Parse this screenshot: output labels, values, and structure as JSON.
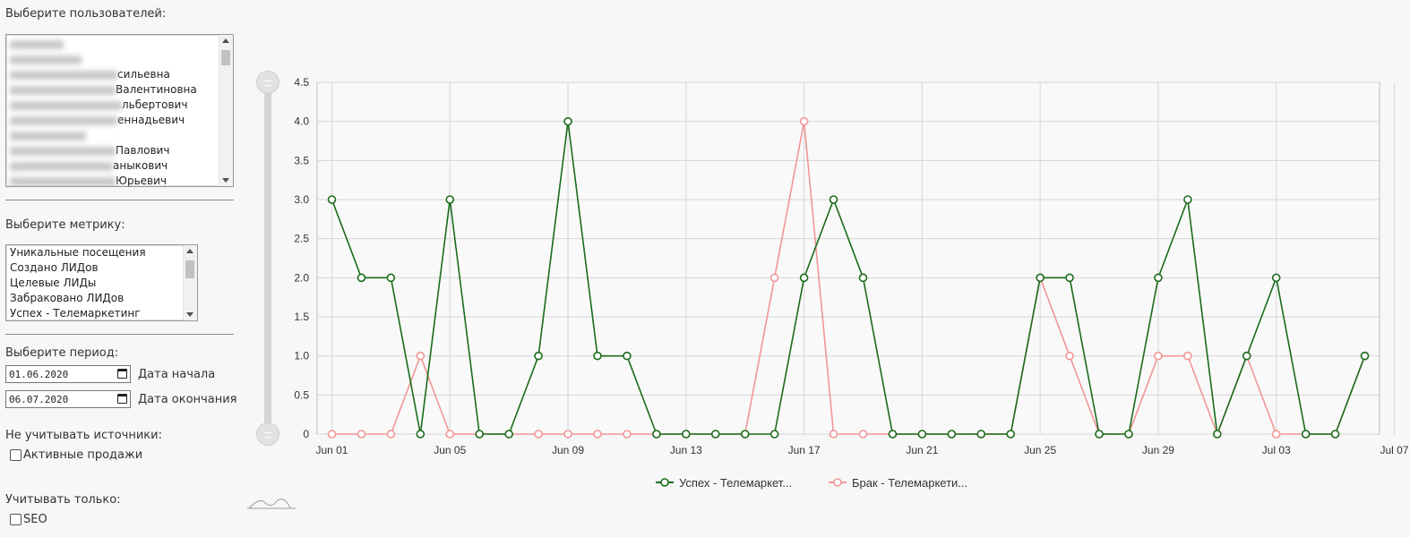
{
  "sidebar": {
    "users_label": "Выберите пользователей:",
    "users": [
      {
        "hidden_width": 60,
        "suffix": ""
      },
      {
        "hidden_width": 80,
        "suffix": ""
      },
      {
        "hidden_width": 120,
        "suffix": "сильевна"
      },
      {
        "hidden_width": 118,
        "suffix": "Валентиновна"
      },
      {
        "hidden_width": 125,
        "suffix": "льбертович"
      },
      {
        "hidden_width": 120,
        "suffix": "еннадьевич"
      },
      {
        "hidden_width": 85,
        "suffix": ""
      },
      {
        "hidden_width": 118,
        "suffix": "Павлович"
      },
      {
        "hidden_width": 115,
        "suffix": "аныкович"
      },
      {
        "hidden_width": 118,
        "suffix": "Юрьевич"
      }
    ],
    "metric_label": "Выберите метрику:",
    "metrics": [
      "Уникальные посещения",
      "Создано ЛИДов",
      "Целевые ЛИДы",
      "Забраковано ЛИДов",
      "Успех - Телемаркетинг"
    ],
    "period_label": "Выберите период:",
    "start_date": "01.06.2020",
    "start_caption": "Дата начала",
    "end_date": "06.07.2020",
    "end_caption": "Дата окончания",
    "exclude_label": "Не учитывать источники:",
    "exclude_option": "Активные продажи",
    "only_label": "Учитывать только:",
    "only_option": "SEO"
  },
  "chart_data": {
    "type": "line",
    "x_start": "2020-06-01",
    "x_end": "2020-07-07",
    "x": [
      "Jun 01",
      "Jun 02",
      "Jun 03",
      "Jun 04",
      "Jun 05",
      "Jun 06",
      "Jun 07",
      "Jun 08",
      "Jun 09",
      "Jun 10",
      "Jun 11",
      "Jun 12",
      "Jun 13",
      "Jun 14",
      "Jun 15",
      "Jun 16",
      "Jun 17",
      "Jun 18",
      "Jun 19",
      "Jun 20",
      "Jun 21",
      "Jun 22",
      "Jun 23",
      "Jun 24",
      "Jun 25",
      "Jun 26",
      "Jun 27",
      "Jun 28",
      "Jun 29",
      "Jun 30",
      "Jul 01",
      "Jul 02",
      "Jul 03",
      "Jul 04",
      "Jul 05",
      "Jul 06"
    ],
    "xticks": [
      "Jun 01",
      "Jun 05",
      "Jun 09",
      "Jun 13",
      "Jun 17",
      "Jun 21",
      "Jun 25",
      "Jun 29",
      "Jul 03",
      "Jul 07"
    ],
    "yticks": [
      "0",
      "0.5",
      "1.0",
      "1.5",
      "2.0",
      "2.5",
      "3.0",
      "3.5",
      "4.0",
      "4.5"
    ],
    "ylim": [
      0,
      4.5
    ],
    "grid": true,
    "legend_position": "bottom",
    "series": [
      {
        "name": "Успех - Телемаркет...",
        "color": "#1a6b1a",
        "values": [
          3,
          2,
          2,
          0,
          3,
          0,
          0,
          1,
          4,
          1,
          1,
          0,
          0,
          0,
          0,
          0,
          2,
          3,
          2,
          0,
          0,
          0,
          0,
          0,
          2,
          2,
          0,
          0,
          2,
          3,
          0,
          1,
          2,
          0,
          0,
          1
        ]
      },
      {
        "name": "Брак - Телемаркети...",
        "color": "#f29595",
        "values": [
          0,
          0,
          0,
          1,
          0,
          0,
          0,
          0,
          0,
          0,
          0,
          0,
          0,
          0,
          0,
          2,
          4,
          0,
          0,
          0,
          0,
          0,
          0,
          0,
          2,
          1,
          0,
          0,
          1,
          1,
          0,
          1,
          0,
          0,
          0,
          1
        ]
      }
    ]
  }
}
